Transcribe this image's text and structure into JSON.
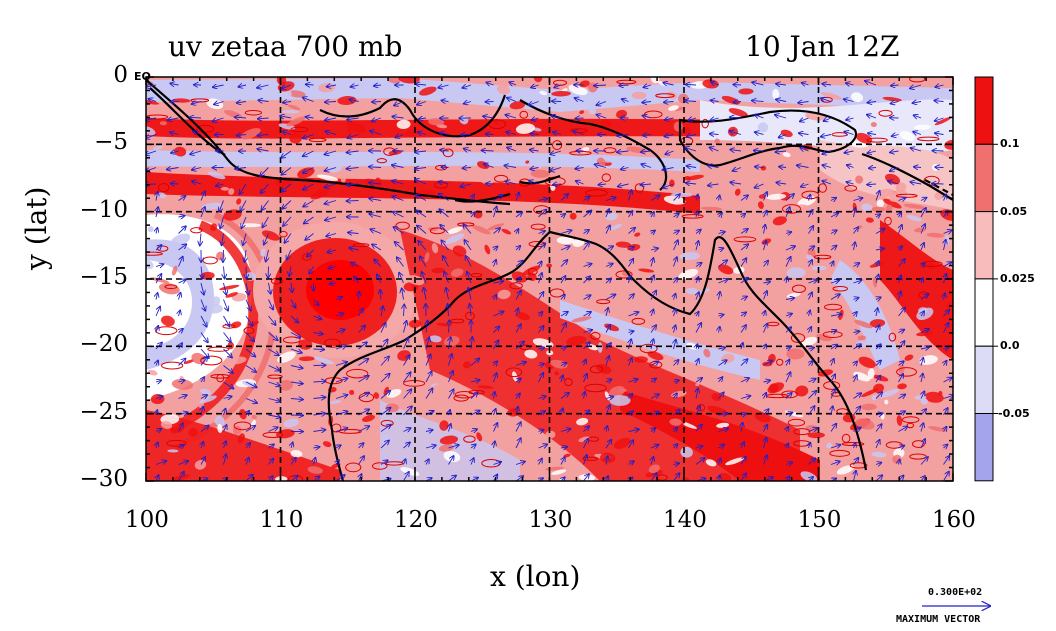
{
  "title": {
    "left": "uv zetaa 700 mb",
    "right": "10 Jan 12Z"
  },
  "corner_label": "EQ",
  "axes": {
    "xlabel": "x (lon)",
    "ylabel": "y (lat)",
    "xlim": [
      100,
      160
    ],
    "ylim": [
      -30,
      0
    ],
    "xticks": [
      "100",
      "110",
      "120",
      "130",
      "140",
      "150",
      "160"
    ],
    "yticks": [
      "0",
      "−5",
      "−10",
      "−15",
      "−20",
      "−25",
      "−30"
    ],
    "grid_lon": [
      110,
      120,
      130,
      140,
      150
    ],
    "grid_lat": [
      -5,
      -10,
      -15,
      -20,
      -25
    ]
  },
  "colorbar": {
    "ticks": [
      "0.1",
      "0.05",
      "0.025",
      "0.0",
      "-0.05"
    ],
    "colors": [
      "#ee1111",
      "#f07070",
      "#f8bcbc",
      "#ffffff",
      "#dcdcf6",
      "#a4a4ec"
    ]
  },
  "max_vector": {
    "value": "0.300E+02",
    "label": "MAXIMUM VECTOR"
  },
  "colors": {
    "vector": "#2020cc",
    "coast": "#000000",
    "strong_pos": "#ee0000",
    "pos": "#f07070",
    "weak_pos": "#f8c0c0",
    "neg": "#c0c0f0"
  }
}
